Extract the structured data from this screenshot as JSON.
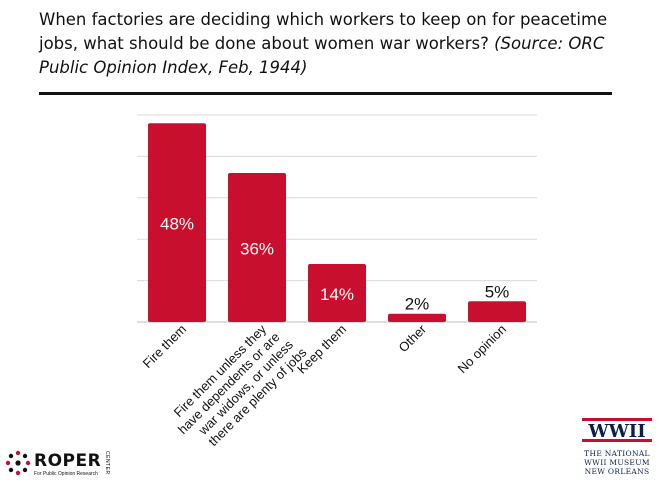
{
  "header": {
    "question": "When factories are deciding which workers to keep on for peacetime jobs, what should be done about women war workers?",
    "source": "(Source: ORC Public Opinion Index, Feb, 1944)"
  },
  "chart_data": {
    "type": "bar",
    "title": "",
    "xlabel": "",
    "ylabel": "",
    "ylim": [
      0,
      50
    ],
    "grid": true,
    "categories": [
      "Fire them",
      "Fire them unless they have dependents or are war widows, or unless there are plenty of jobs",
      "Keep them",
      "Other",
      "No opinion"
    ],
    "category_lines": [
      [
        "Fire them"
      ],
      [
        "Fire them unless they",
        "have dependents or are",
        "war widows, or unless",
        "there are plenty of jobs"
      ],
      [
        "Keep them"
      ],
      [
        "Other"
      ],
      [
        "No opinion"
      ]
    ],
    "values": [
      48,
      36,
      14,
      2,
      5
    ],
    "value_labels": [
      "48%",
      "36%",
      "14%",
      "2%",
      "5%"
    ],
    "bar_color": "#c8102e"
  },
  "logos": {
    "roper_name": "ROPER",
    "roper_center": "CENTER",
    "roper_tagline": "For Public Opinion Research",
    "museum_logo": "WWII",
    "museum_line1": "THE NATIONAL",
    "museum_line2": "WWII MUSEUM",
    "museum_line3": "NEW ORLEANS"
  }
}
